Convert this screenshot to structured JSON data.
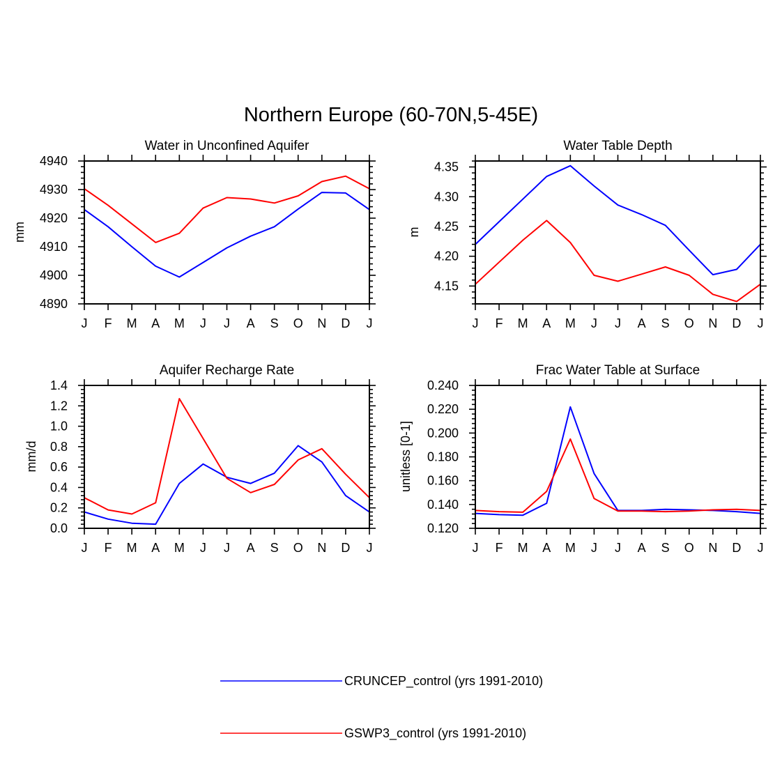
{
  "figure": {
    "title": "Northern Europe (60-70N,5-45E)"
  },
  "legend": [
    {
      "label": "CRUNCEP_control (yrs 1991-2010)",
      "color": "#0000ff"
    },
    {
      "label": "GSWP3_control (yrs 1991-2010)",
      "color": "#ff0000"
    }
  ],
  "chart_data": [
    {
      "type": "line",
      "title": "Water in Unconfined Aquifer",
      "xlabel": "",
      "ylabel": "mm",
      "categories": [
        "J",
        "F",
        "M",
        "A",
        "M",
        "J",
        "J",
        "A",
        "S",
        "O",
        "N",
        "D",
        "J"
      ],
      "ylim": [
        4890,
        4940
      ],
      "yticks": [
        "4890",
        "4900",
        "4910",
        "4920",
        "4930",
        "4940"
      ],
      "series": [
        {
          "name": "CRUNCEP_control (yrs 1991-2010)",
          "color": "#0000ff",
          "values": [
            4923,
            4917,
            4910,
            4903.2,
            4899.4,
            4904.5,
            4909.6,
            4913.7,
            4917,
            4923.2,
            4929,
            4928.8,
            4923
          ]
        },
        {
          "name": "GSWP3_control (yrs 1991-2010)",
          "color": "#ff0000",
          "values": [
            4930.3,
            4924.5,
            4918,
            4911.5,
            4914.7,
            4923.5,
            4927.2,
            4926.7,
            4925.3,
            4927.8,
            4932.8,
            4934.7,
            4930.3
          ]
        }
      ]
    },
    {
      "type": "line",
      "title": "Water Table Depth",
      "xlabel": "",
      "ylabel": "m",
      "categories": [
        "J",
        "F",
        "M",
        "A",
        "M",
        "J",
        "J",
        "A",
        "S",
        "O",
        "N",
        "D",
        "J"
      ],
      "ylim": [
        4.12,
        4.36
      ],
      "yticks": [
        "4.15",
        "4.20",
        "4.25",
        "4.30",
        "4.35"
      ],
      "series": [
        {
          "name": "CRUNCEP_control (yrs 1991-2010)",
          "color": "#0000ff",
          "values": [
            4.22,
            4.258,
            4.296,
            4.334,
            4.352,
            4.318,
            4.286,
            4.27,
            4.252,
            4.21,
            4.169,
            4.178,
            4.22
          ]
        },
        {
          "name": "GSWP3_control (yrs 1991-2010)",
          "color": "#ff0000",
          "values": [
            4.153,
            4.19,
            4.227,
            4.26,
            4.223,
            4.168,
            4.158,
            4.17,
            4.182,
            4.168,
            4.136,
            4.124,
            4.153
          ]
        }
      ]
    },
    {
      "type": "line",
      "title": "Aquifer Recharge Rate",
      "xlabel": "",
      "ylabel": "mm/d",
      "categories": [
        "J",
        "F",
        "M",
        "A",
        "M",
        "J",
        "J",
        "A",
        "S",
        "O",
        "N",
        "D",
        "J"
      ],
      "ylim": [
        0,
        1.4
      ],
      "yticks": [
        "0.0",
        "0.2",
        "0.4",
        "0.6",
        "0.8",
        "1.0",
        "1.2",
        "1.4"
      ],
      "series": [
        {
          "name": "CRUNCEP_control (yrs 1991-2010)",
          "color": "#0000ff",
          "values": [
            0.16,
            0.09,
            0.05,
            0.04,
            0.44,
            0.63,
            0.5,
            0.44,
            0.54,
            0.81,
            0.65,
            0.32,
            0.16
          ]
        },
        {
          "name": "GSWP3_control (yrs 1991-2010)",
          "color": "#ff0000",
          "values": [
            0.3,
            0.18,
            0.14,
            0.25,
            1.27,
            0.88,
            0.49,
            0.35,
            0.43,
            0.67,
            0.78,
            0.53,
            0.3
          ]
        }
      ]
    },
    {
      "type": "line",
      "title": "Frac Water Table at Surface",
      "xlabel": "",
      "ylabel": "unitless [0-1]",
      "categories": [
        "J",
        "F",
        "M",
        "A",
        "M",
        "J",
        "J",
        "A",
        "S",
        "O",
        "N",
        "D",
        "J"
      ],
      "ylim": [
        0.12,
        0.24
      ],
      "yticks": [
        "0.120",
        "0.140",
        "0.160",
        "0.180",
        "0.200",
        "0.220",
        "0.240"
      ],
      "series": [
        {
          "name": "CRUNCEP_control (yrs 1991-2010)",
          "color": "#0000ff",
          "values": [
            0.1325,
            0.1315,
            0.131,
            0.141,
            0.222,
            0.166,
            0.135,
            0.135,
            0.136,
            0.1355,
            0.135,
            0.134,
            0.1325
          ]
        },
        {
          "name": "GSWP3_control (yrs 1991-2010)",
          "color": "#ff0000",
          "values": [
            0.135,
            0.134,
            0.1335,
            0.151,
            0.195,
            0.145,
            0.1345,
            0.1345,
            0.134,
            0.1345,
            0.1355,
            0.136,
            0.135
          ]
        }
      ]
    }
  ]
}
